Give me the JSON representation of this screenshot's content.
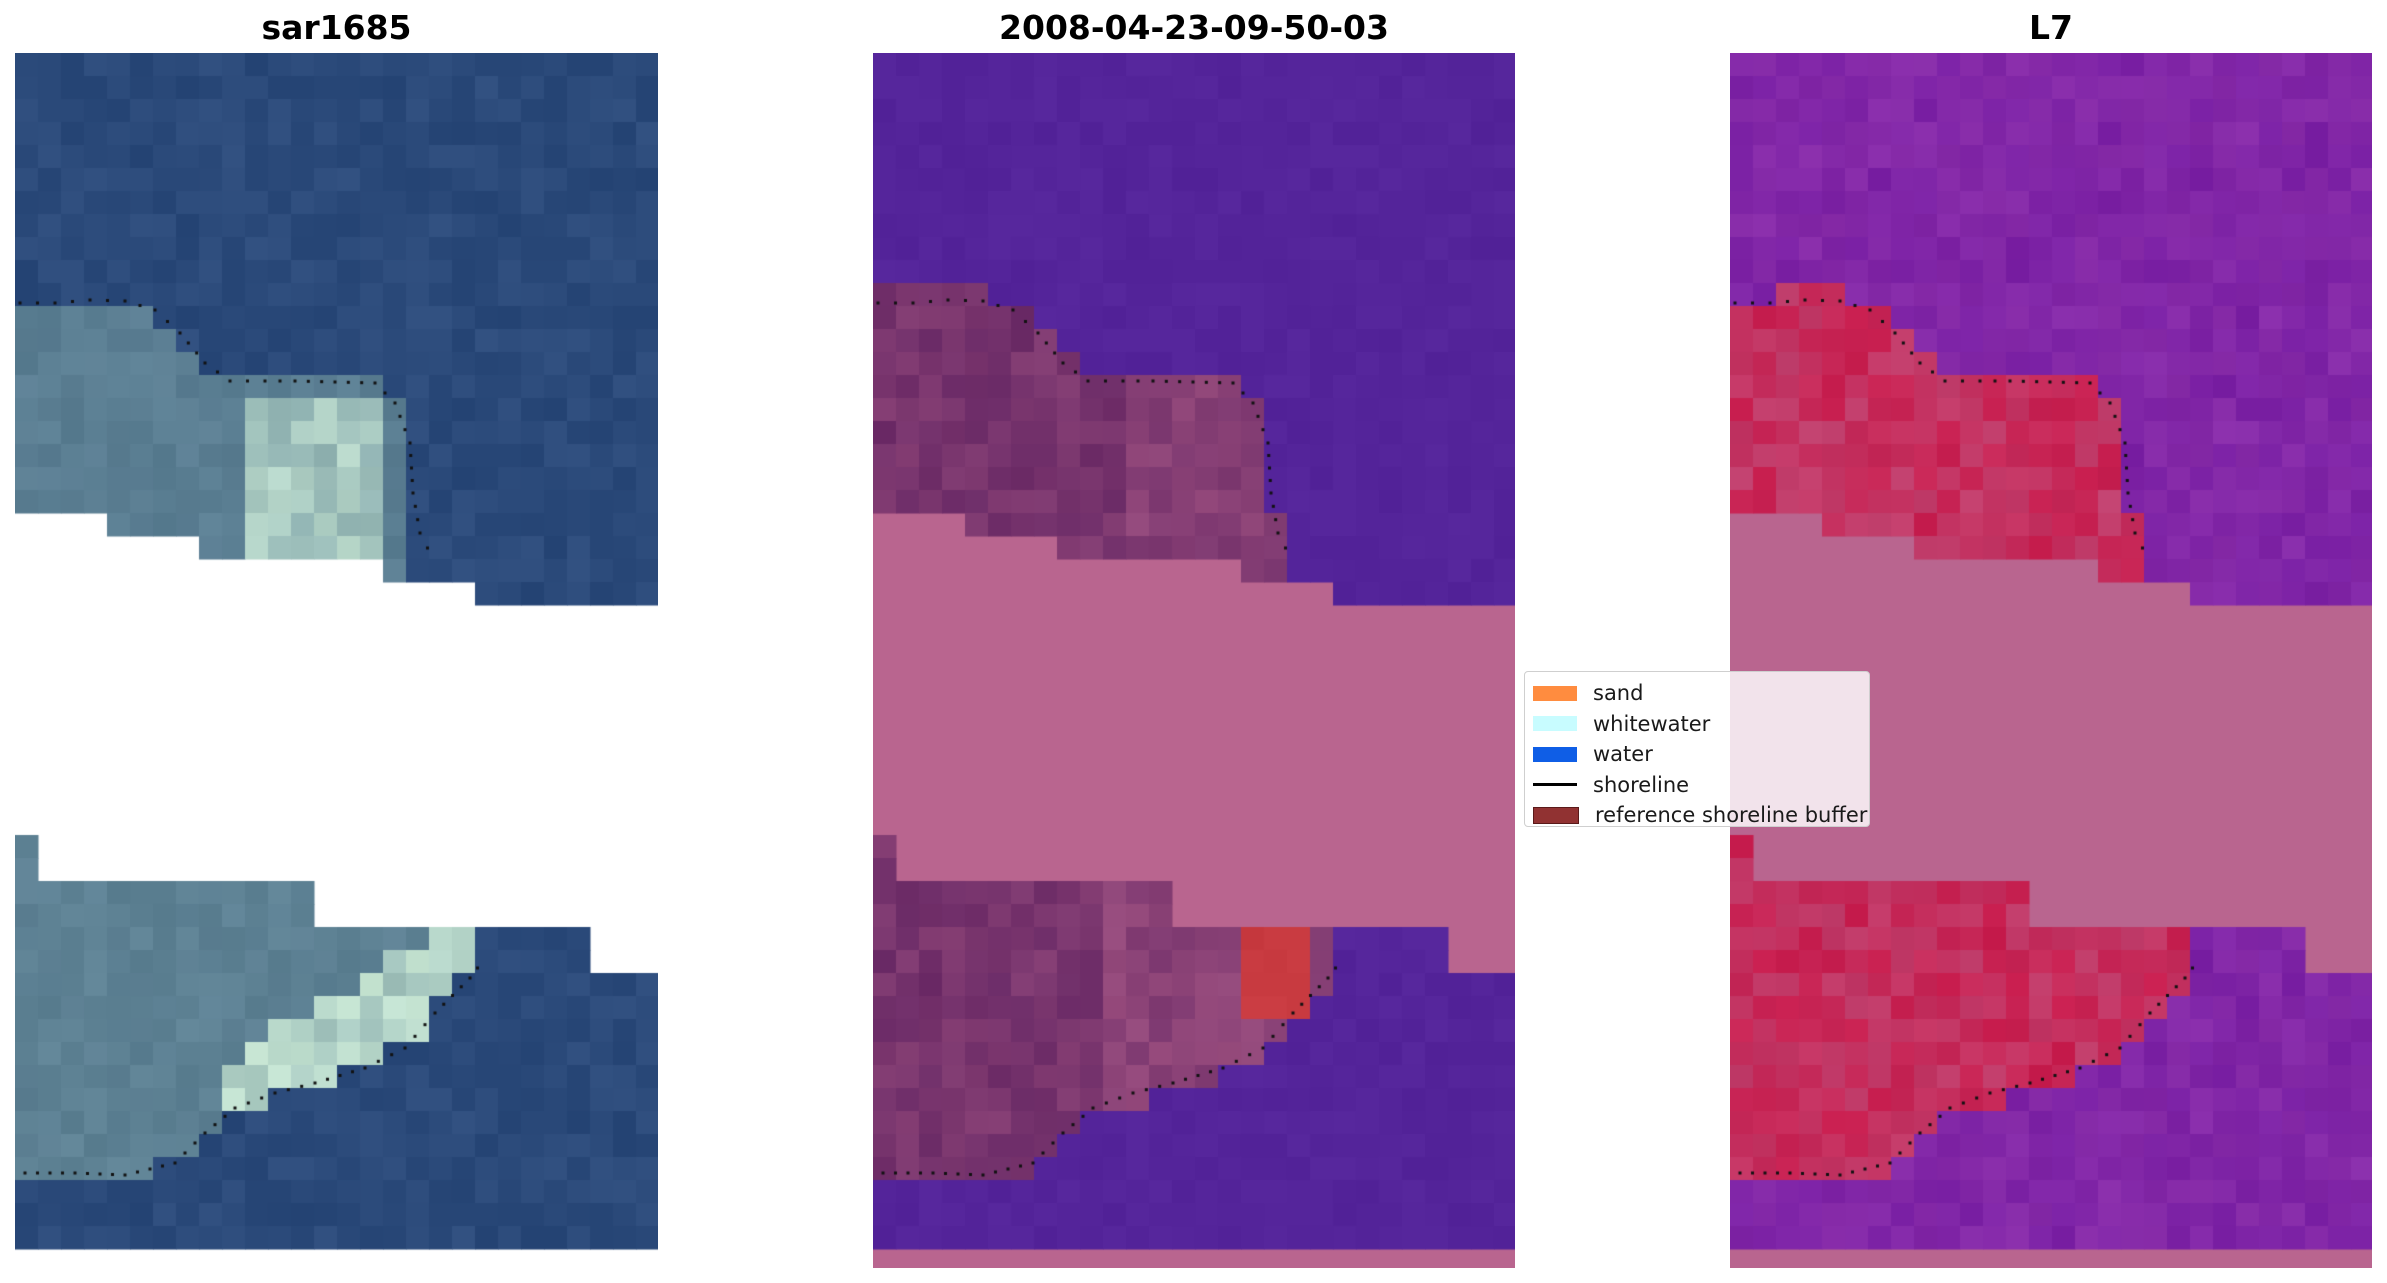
{
  "panels": [
    {
      "title": "sar1685"
    },
    {
      "title": "2008-04-23-09-50-03"
    },
    {
      "title": "L7"
    }
  ],
  "legend": {
    "items": [
      {
        "label": "sand",
        "color": "#ff8c3f",
        "kind": "patch"
      },
      {
        "label": "whitewater",
        "color": "#c8fcff",
        "kind": "patch"
      },
      {
        "label": "water",
        "color": "#0f5ee6",
        "kind": "patch"
      },
      {
        "label": "shoreline",
        "color": "#000000",
        "kind": "line"
      },
      {
        "label": "reference shoreline buffer",
        "color": "#913232",
        "kind": "patch",
        "border": "#5a1a1a"
      }
    ]
  },
  "colors": {
    "rgb_water": "#2b4a7a",
    "rgb_sand": "#6a8f9a",
    "rgb_whitewater": "#d4f2dc",
    "class_water": "#54249a",
    "class_sand": "#6a2a66",
    "class_buffer": "#b9658f",
    "class_red": "#c83a40",
    "index_water": "#7a20a4",
    "index_land": "#c81d4e",
    "index_buffer": "#b9658f",
    "shoreline": "#111111"
  }
}
